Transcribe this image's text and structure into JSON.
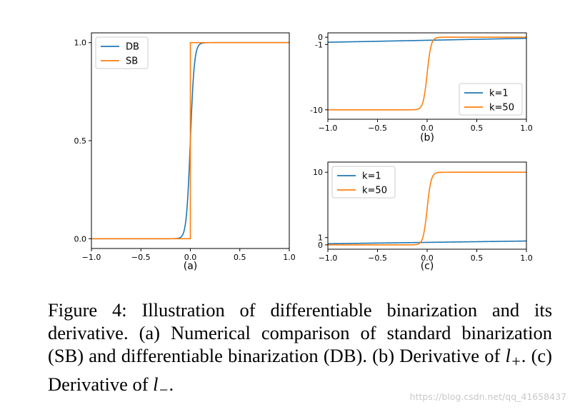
{
  "caption": {
    "figure_label": "Figure 4:",
    "text_1": "Illustration of differentiable binarization and its derivative. (a) Numerical comparison of standard binarization (SB) and differentiable binarization (DB). (b) Derivative of",
    "math_lplus": "l",
    "math_lplus_sub": "+",
    "text_2": ". (c) Derivative of",
    "math_lminus": "l",
    "math_lminus_sub": "−",
    "text_3": "."
  },
  "watermark": "https://blog.csdn.net/qq_41658437",
  "colors": {
    "blue": "#1f77b4",
    "orange": "#ff7f0e"
  },
  "chart_data": [
    {
      "id": "a",
      "type": "line",
      "sublabel": "(a)",
      "xlim": [
        -1.0,
        1.0
      ],
      "ylim": [
        -0.05,
        1.05
      ],
      "xticks": [
        -1.0,
        -0.5,
        0.0,
        0.5,
        1.0
      ],
      "xtick_labels": [
        "−1.0",
        "−0.5",
        "0.0",
        "0.5",
        "1.0"
      ],
      "yticks": [
        0.0,
        0.5,
        1.0
      ],
      "ytick_labels": [
        "0.0",
        "0.5",
        "1.0"
      ],
      "legend": "top-left",
      "series": [
        {
          "name": "DB",
          "color": "#1f77b4",
          "kind": "sigmoid",
          "k": 50
        },
        {
          "name": "SB",
          "color": "#ff7f0e",
          "kind": "step"
        }
      ]
    },
    {
      "id": "b",
      "type": "line",
      "sublabel": "(b)",
      "xlim": [
        -1.0,
        1.0
      ],
      "ylim": [
        -11.3,
        0.6
      ],
      "xticks": [
        -1.0,
        -0.5,
        0.0,
        0.5,
        1.0
      ],
      "xtick_labels": [
        "−1.0",
        "−0.5",
        "0.0",
        "0.5",
        "1.0"
      ],
      "yticks": [
        0,
        -1,
        -10
      ],
      "ytick_labels": [
        "0",
        "-1",
        "-10"
      ],
      "legend": "bottom-right",
      "series": [
        {
          "name": "k=1",
          "color": "#1f77b4",
          "kind": "lplus",
          "k": 1
        },
        {
          "name": "k=50",
          "color": "#ff7f0e",
          "kind": "lplus",
          "k": 50
        }
      ]
    },
    {
      "id": "c",
      "type": "line",
      "sublabel": "(c)",
      "xlim": [
        -1.0,
        1.0
      ],
      "ylim": [
        -0.6,
        11.4
      ],
      "xticks": [
        -1.0,
        -0.5,
        0.0,
        0.5,
        1.0
      ],
      "xtick_labels": [
        "−1.0",
        "−0.5",
        "0.0",
        "0.5",
        "1.0"
      ],
      "yticks": [
        0,
        1,
        10
      ],
      "ytick_labels": [
        "0",
        "1",
        "10"
      ],
      "legend": "top-left",
      "series": [
        {
          "name": "k=1",
          "color": "#1f77b4",
          "kind": "lminus",
          "k": 1
        },
        {
          "name": "k=50",
          "color": "#ff7f0e",
          "kind": "lminus",
          "k": 50
        }
      ]
    }
  ]
}
